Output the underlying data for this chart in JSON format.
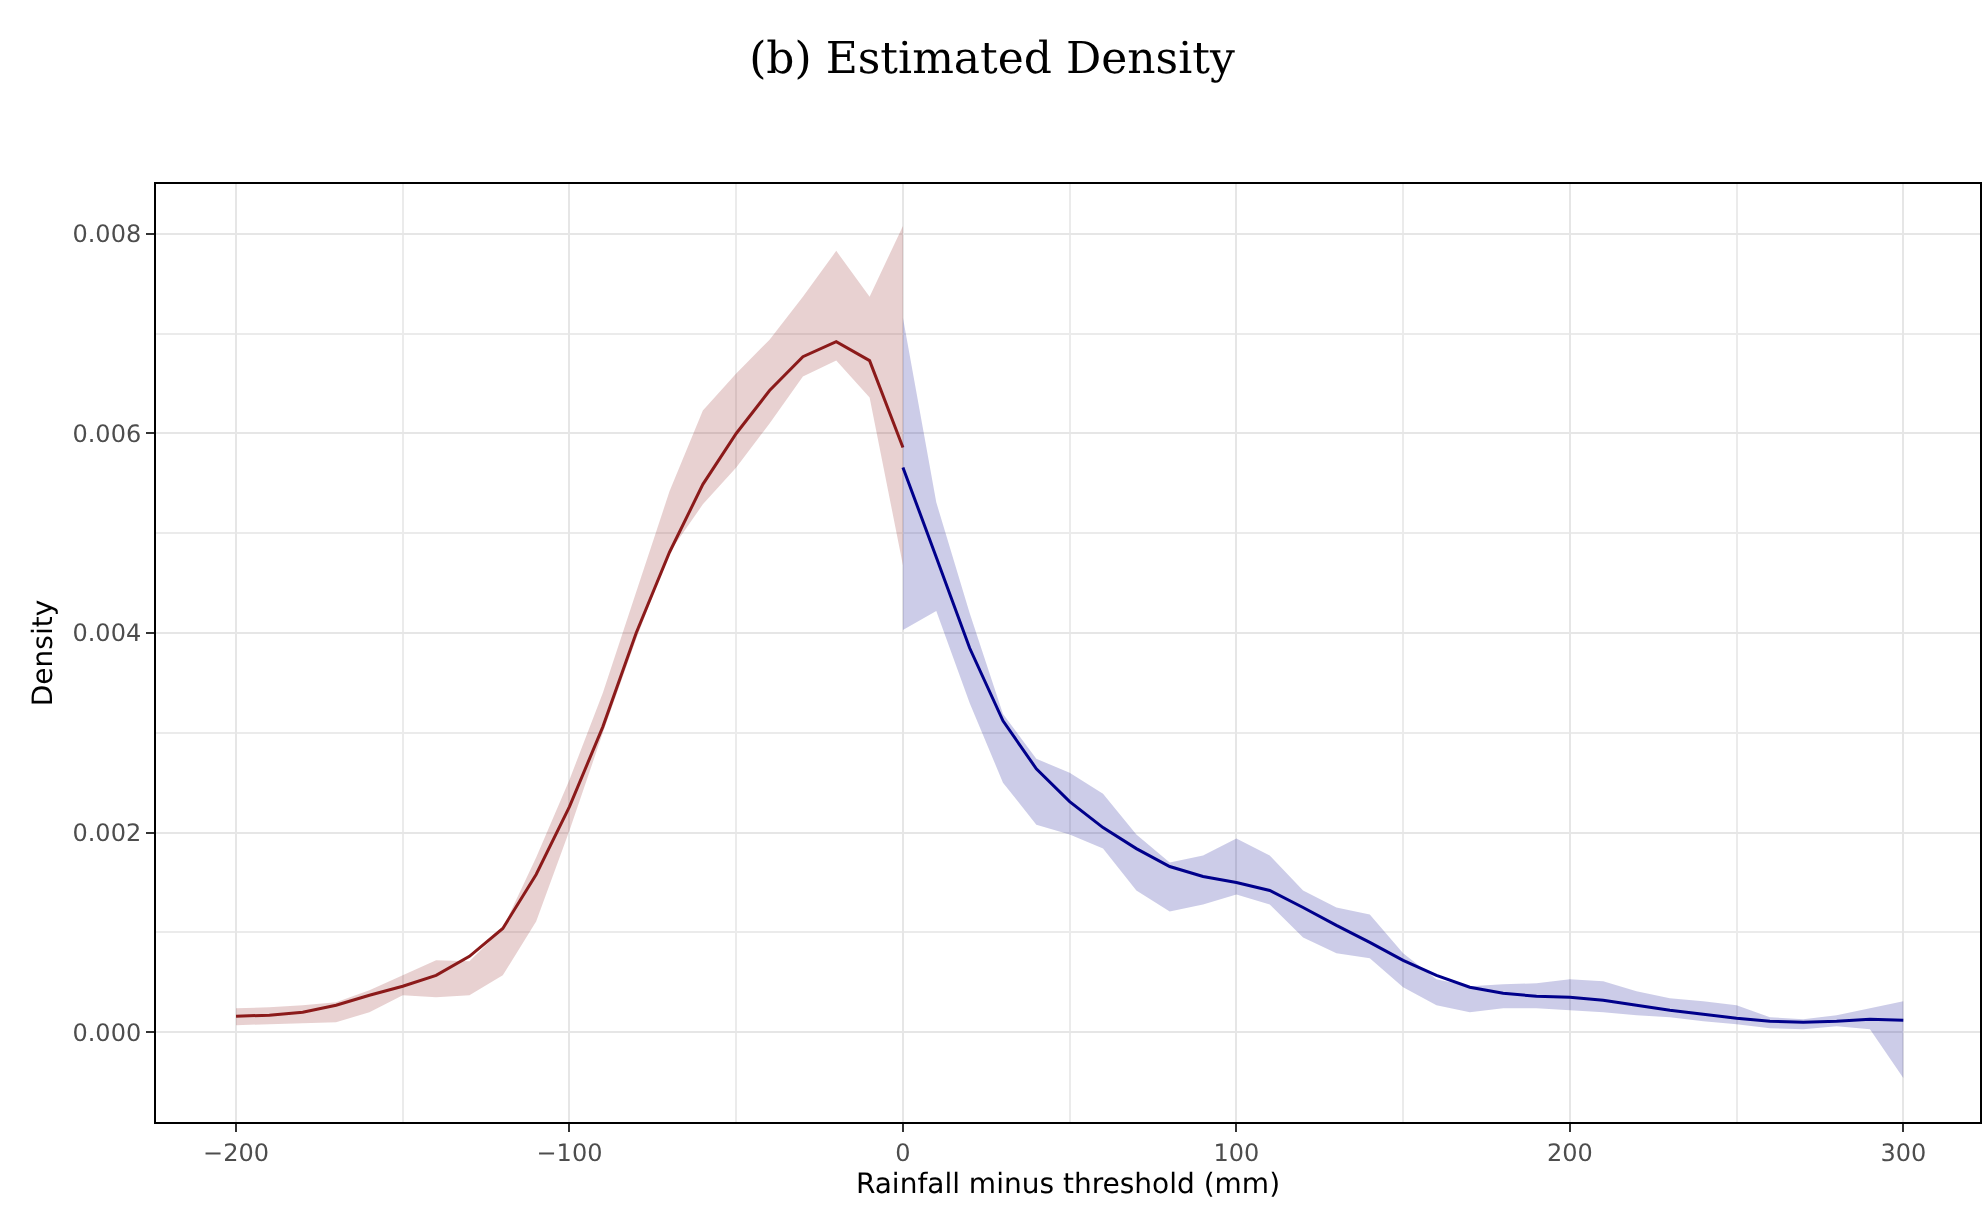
{
  "chart_data": {
    "type": "line",
    "title": "(b) Estimated Density",
    "xlabel": "Rainfall minus threshold (mm)",
    "ylabel": "Density",
    "xlim": [
      -224,
      323
    ],
    "ylim": [
      -0.0009,
      0.0085
    ],
    "xticks": [
      {
        "value": -200,
        "label": "−200"
      },
      {
        "value": -100,
        "label": "−100"
      },
      0,
      100,
      200,
      300
    ],
    "yticks": [
      {
        "value": 0,
        "label": "0.000"
      },
      {
        "value": 0.002,
        "label": "0.002"
      },
      {
        "value": 0.004,
        "label": "0.004"
      },
      {
        "value": 0.006,
        "label": "0.006"
      },
      {
        "value": 0.008,
        "label": "0.008"
      }
    ],
    "grid": true,
    "marker": "none",
    "line_style": "solid",
    "series": [
      {
        "color": "#8b1a1a",
        "x": [
          -200,
          -190,
          -180,
          -170,
          -160,
          -150,
          -140,
          -130,
          -120,
          -110,
          -100,
          -90,
          -80,
          -70,
          -60,
          -50,
          -40,
          -30,
          -20,
          -10,
          0
        ],
        "values": [
          0.00016,
          0.00017,
          0.0002,
          0.00027,
          0.00037,
          0.00046,
          0.00057,
          0.00076,
          0.00104,
          0.00158,
          0.00226,
          0.00306,
          0.004,
          0.00481,
          0.00549,
          0.006,
          0.00643,
          0.00677,
          0.00692,
          0.00673,
          0.00586
        ],
        "lower": [
          7e-05,
          8e-05,
          9e-05,
          0.0001,
          0.0002,
          0.00037,
          0.00035,
          0.00037,
          0.00057,
          0.00111,
          0.00202,
          0.003,
          0.00394,
          0.00481,
          0.00529,
          0.00566,
          0.0061,
          0.00657,
          0.00673,
          0.00636,
          0.00468
        ],
        "upper": [
          0.00024,
          0.00025,
          0.00027,
          0.0003,
          0.00042,
          0.00057,
          0.00072,
          0.00071,
          0.00104,
          0.00175,
          0.00253,
          0.0034,
          0.00441,
          0.00542,
          0.00623,
          0.0066,
          0.00694,
          0.00737,
          0.00783,
          0.00737,
          0.00808
        ]
      },
      {
        "color": "#00008b",
        "x": [
          0,
          10,
          20,
          30,
          40,
          50,
          60,
          70,
          80,
          90,
          100,
          110,
          120,
          130,
          140,
          150,
          160,
          170,
          180,
          190,
          200,
          210,
          220,
          230,
          240,
          250,
          260,
          270,
          280,
          290,
          300
        ],
        "values": [
          0.00566,
          0.00476,
          0.00385,
          0.00312,
          0.00264,
          0.00231,
          0.00205,
          0.00184,
          0.00166,
          0.00156,
          0.0015,
          0.00142,
          0.00125,
          0.00107,
          0.0009,
          0.00072,
          0.00057,
          0.00045,
          0.00039,
          0.00036,
          0.00035,
          0.00032,
          0.00027,
          0.00022,
          0.00018,
          0.00014,
          0.00011,
          0.0001,
          0.00011,
          0.00013,
          0.00012
        ],
        "lower": [
          0.00403,
          0.00422,
          0.0033,
          0.0025,
          0.00208,
          0.00198,
          0.00184,
          0.00142,
          0.00121,
          0.00128,
          0.00138,
          0.00128,
          0.00095,
          0.00079,
          0.00074,
          0.00045,
          0.00027,
          0.0002,
          0.00024,
          0.00024,
          0.00022,
          0.0002,
          0.00017,
          0.00015,
          0.00011,
          8e-05,
          4e-05,
          3e-05,
          6e-05,
          3e-05,
          -0.00046
        ],
        "upper": [
          0.00716,
          0.00531,
          0.0042,
          0.00319,
          0.00274,
          0.0026,
          0.00239,
          0.00198,
          0.0017,
          0.00177,
          0.00194,
          0.00177,
          0.00142,
          0.00125,
          0.00118,
          0.00079,
          0.00053,
          0.00046,
          0.00048,
          0.00049,
          0.00053,
          0.00051,
          0.00041,
          0.00034,
          0.00031,
          0.00027,
          0.00015,
          0.00013,
          0.00017,
          0.00024,
          0.00031
        ]
      }
    ]
  }
}
